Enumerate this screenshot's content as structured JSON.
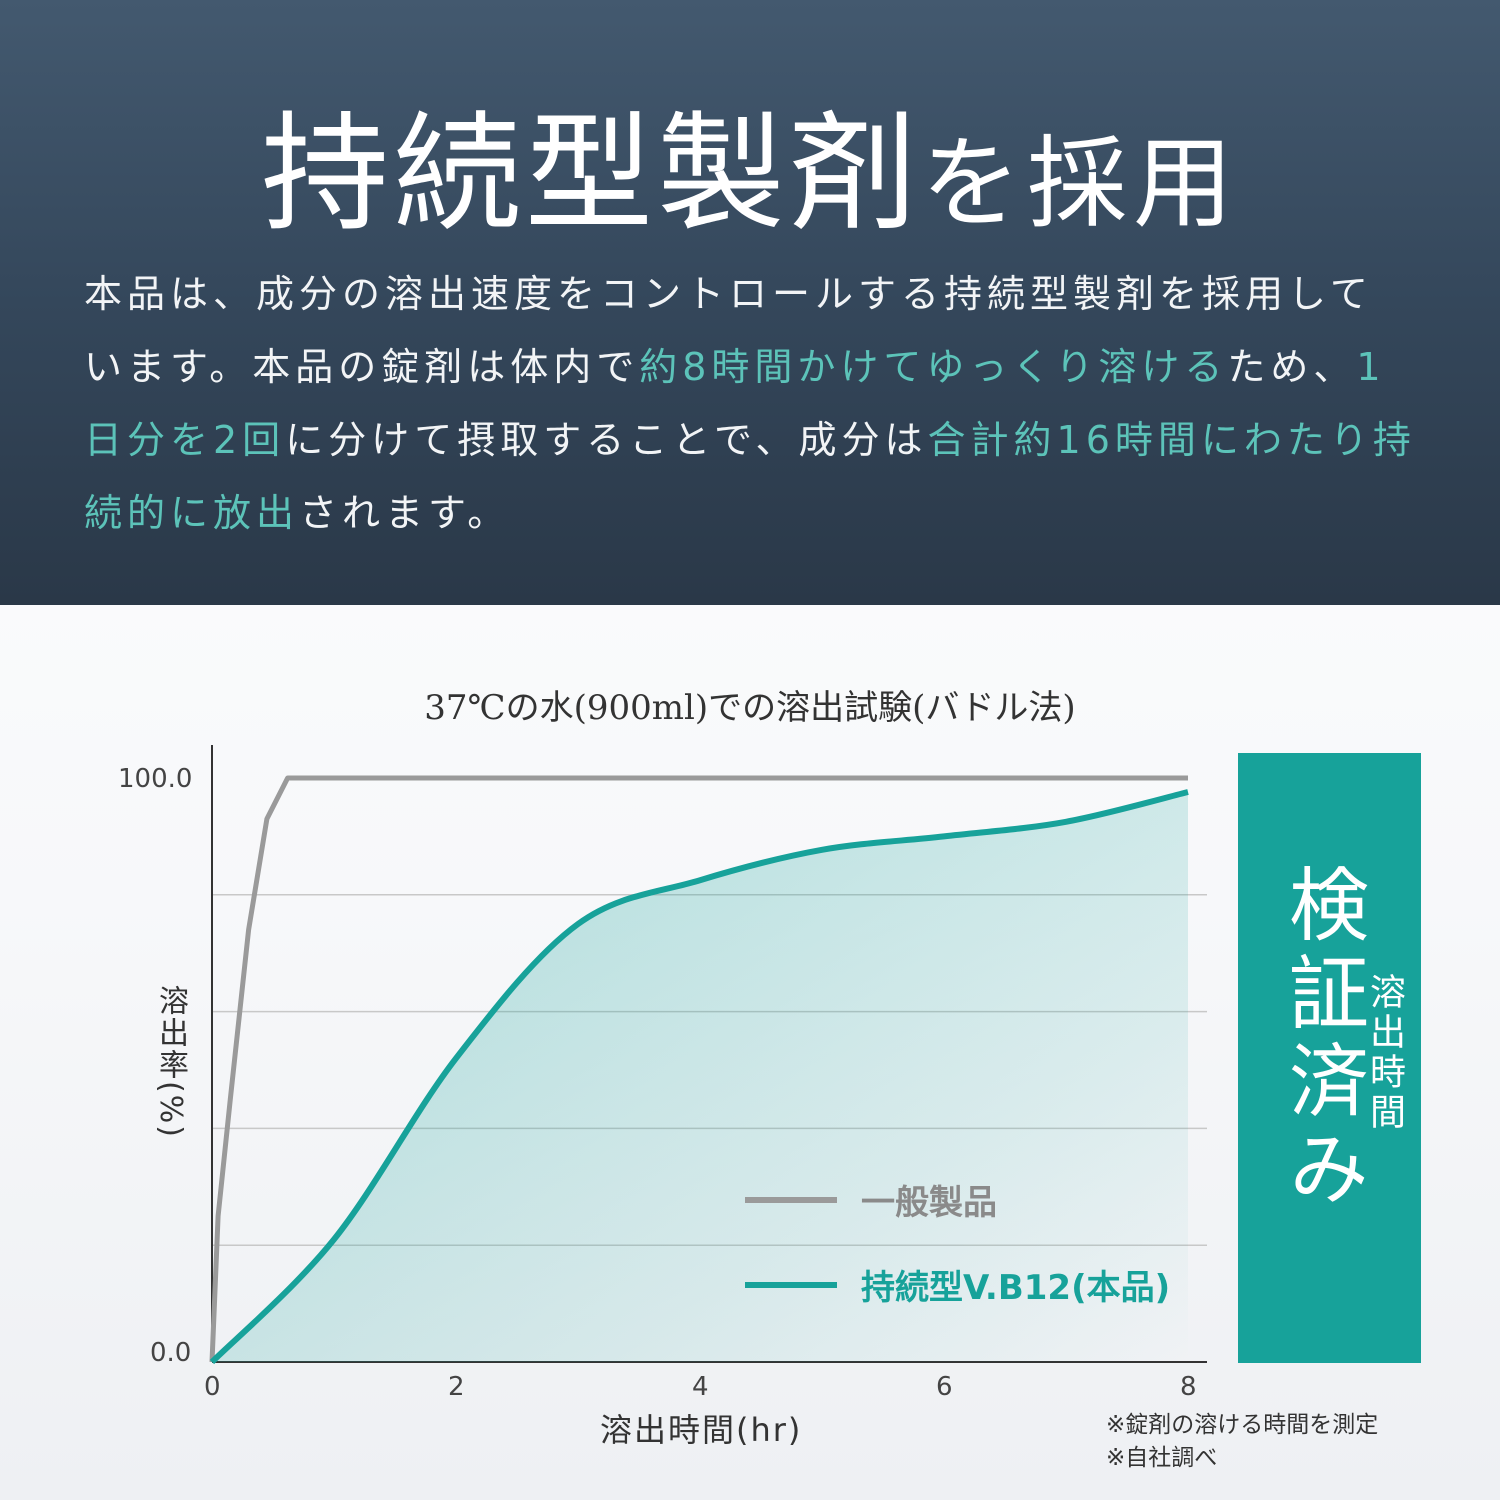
{
  "header": {
    "title_main": "持続型製剤",
    "title_suffix": "を採用",
    "paragraph_lines": [
      [
        {
          "text": "本品は、成分の溶出速度をコントロールする持続型製剤を採用して",
          "highlight": false
        }
      ],
      [
        {
          "text": "います。本品の錠剤は体内で",
          "highlight": false
        },
        {
          "text": "約8時間かけてゆっくり溶ける",
          "highlight": true
        },
        {
          "text": "ため、",
          "highlight": false
        },
        {
          "text": "1",
          "highlight": true
        }
      ],
      [
        {
          "text": "日分を2回",
          "highlight": true
        },
        {
          "text": "に分けて摂取することで、成分は",
          "highlight": false
        },
        {
          "text": "合計約16時間にわたり持",
          "highlight": true
        }
      ],
      [
        {
          "text": "続的に放出",
          "highlight": true
        },
        {
          "text": "されます。",
          "highlight": false
        }
      ]
    ]
  },
  "colors": {
    "teal": "#17a29a",
    "highlight": "#5cc3b9",
    "gray": "#9a9a9a",
    "hero": "#34475b"
  },
  "chart_data": {
    "type": "line",
    "title": "37℃の水(900ml)での溶出試験(バドル法)",
    "xlabel": "溶出時間(hr)",
    "ylabel": "溶出率(%)",
    "xlim": [
      0,
      8
    ],
    "ylim": [
      0,
      100
    ],
    "x_ticks": [
      "0",
      "2",
      "4",
      "6",
      "8"
    ],
    "y_tick_labels": [
      "100.0",
      "0.0"
    ],
    "grid": true,
    "legend_placement": "bottom-right",
    "series": [
      {
        "name": "一般製品",
        "color": "#9a9a9a",
        "x": [
          0,
          0.05,
          0.15,
          0.3,
          0.45,
          0.62,
          8
        ],
        "y": [
          0,
          25,
          45,
          74,
          93,
          100,
          100
        ]
      },
      {
        "name": "持続型V.B12(本品)",
        "color": "#17a29a",
        "area": true,
        "x": [
          0,
          1,
          2,
          3,
          4,
          5,
          6,
          7,
          8
        ],
        "y": [
          0,
          21,
          52,
          75,
          82.5,
          87.7,
          90,
          92.5,
          97.6
        ]
      }
    ]
  },
  "side_panel": {
    "main": "検証済み",
    "sub": "溶出時間"
  },
  "notes": [
    "※錠剤の溶ける時間を測定",
    "※自社調べ"
  ]
}
